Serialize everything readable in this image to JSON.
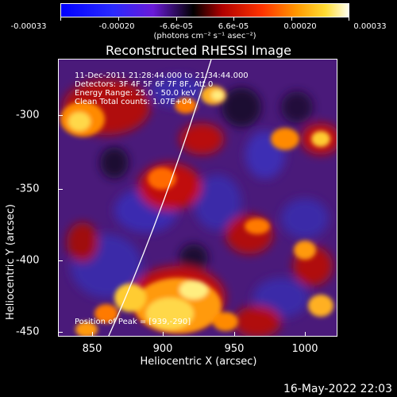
{
  "colorbar": {
    "ticks": [
      "-0.00033",
      "-0.00020",
      "-6.6e-05",
      "6.6e-05",
      "0.00020",
      "0.00033"
    ],
    "units": "(photons cm⁻² s⁻¹ asec⁻²)"
  },
  "title": "Reconstructed RHESSI Image",
  "info": {
    "time": "11-Dec-2011 21:28:44.000 to 21:34:44.000",
    "detectors": "Detectors: 3F 4F 5F 6F 7F 8F, Att 0",
    "energy": "Energy Range: 25.0 - 50.0 keV",
    "clean": "Clean     Total counts: 1.07E+04",
    "peak": "Position of Peak = [939,-290]"
  },
  "axes": {
    "xlabel": "Heliocentric X (arcsec)",
    "ylabel": "Heliocentric Y (arcsec)",
    "xticks": [
      "850",
      "900",
      "950",
      "1000"
    ],
    "yticks": [
      "-300",
      "-350",
      "-400",
      "-450"
    ]
  },
  "footer": {
    "date": "16-May-2022 22:03"
  }
}
